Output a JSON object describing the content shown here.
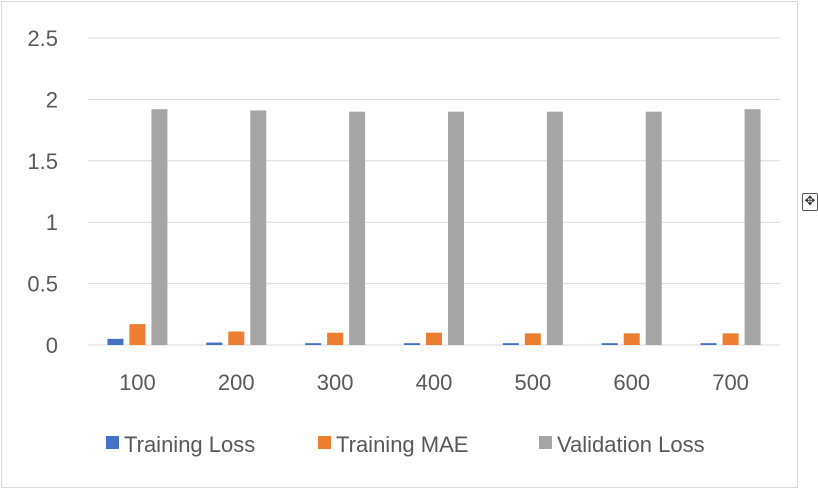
{
  "colors": {
    "training_loss": "#4472c4",
    "training_mae": "#ed7d31",
    "validation_loss": "#a5a5a5",
    "gridline": "#d9d9d9",
    "text": "#595959"
  },
  "move_handle_icon": "move-icon",
  "chart_data": {
    "type": "bar",
    "title": "",
    "xlabel": "",
    "ylabel": "",
    "categories": [
      "100",
      "200",
      "300",
      "400",
      "500",
      "600",
      "700"
    ],
    "series": [
      {
        "name": "Training Loss",
        "values": [
          0.05,
          0.02,
          0.015,
          0.015,
          0.015,
          0.015,
          0.015
        ]
      },
      {
        "name": "Training MAE",
        "values": [
          0.17,
          0.11,
          0.1,
          0.1,
          0.095,
          0.095,
          0.095
        ]
      },
      {
        "name": "Validation Loss",
        "values": [
          1.92,
          1.91,
          1.9,
          1.9,
          1.9,
          1.9,
          1.92
        ]
      }
    ],
    "ylim": [
      0,
      2.5
    ],
    "yticks": [
      "0",
      "0.5",
      "1",
      "1.5",
      "2",
      "2.5"
    ],
    "grid": true,
    "legend_position": "bottom"
  }
}
